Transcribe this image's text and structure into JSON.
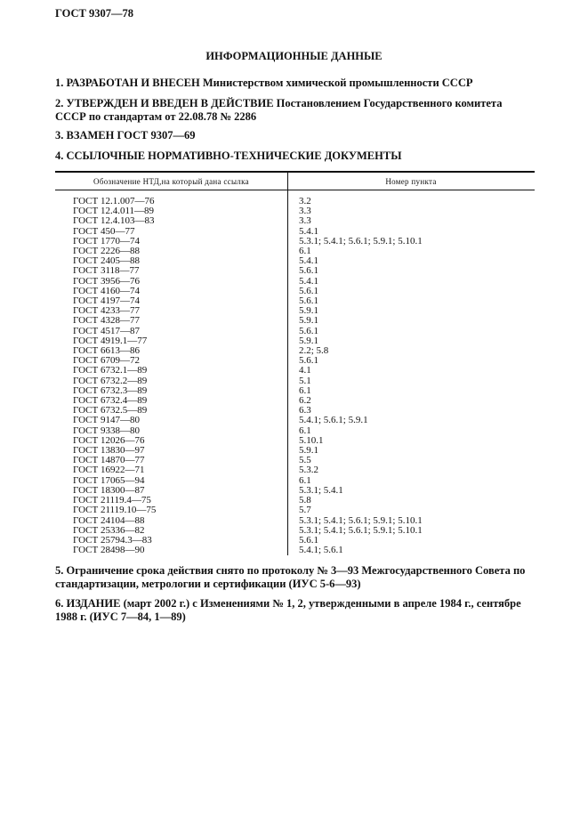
{
  "header": {
    "doc_id": "ГОСТ 9307—78"
  },
  "title": "ИНФОРМАЦИОННЫЕ ДАННЫЕ",
  "sections": [
    "1. РАЗРАБОТАН И ВНЕСЕН Министерством химической промышленности СССР",
    "2. УТВЕРЖДЕН И ВВЕДЕН В ДЕЙСТВИЕ Постановлением Государственного комитета СССР по стандартам от 22.08.78 № 2286",
    "3. ВЗАМЕН ГОСТ 9307—69",
    "4. ССЫЛОЧНЫЕ НОРМАТИВНО-ТЕХНИЧЕСКИЕ ДОКУМЕНТЫ",
    "5. Ограничение срока действия снято по протоколу № 3—93 Межгосударственного Совета по стандартизации, метрологии и сертификации (ИУС 5-6—93)",
    "6. ИЗДАНИЕ (март 2002 г.) с Изменениями № 1, 2, утвержденными в апреле 1984 г., сентябре 1988 г. (ИУС 7—84, 1—89)"
  ],
  "table": {
    "headers": [
      "Обозначение НТД,на который дана ссылка",
      "Номер пункта"
    ],
    "rows": [
      [
        "ГОСТ 12.1.007—76",
        "3.2"
      ],
      [
        "ГОСТ 12.4.011—89",
        "3.3"
      ],
      [
        "ГОСТ 12.4.103—83",
        "3.3"
      ],
      [
        "ГОСТ 450—77",
        "5.4.1"
      ],
      [
        "ГОСТ 1770—74",
        "5.3.1; 5.4.1; 5.6.1; 5.9.1; 5.10.1"
      ],
      [
        "ГОСТ 2226—88",
        "6.1"
      ],
      [
        "ГОСТ 2405—88",
        "5.4.1"
      ],
      [
        "ГОСТ 3118—77",
        "5.6.1"
      ],
      [
        "ГОСТ 3956—76",
        "5.4.1"
      ],
      [
        "ГОСТ 4160—74",
        "5.6.1"
      ],
      [
        "ГОСТ 4197—74",
        "5.6.1"
      ],
      [
        "ГОСТ 4233—77",
        "5.9.1"
      ],
      [
        "ГОСТ 4328—77",
        "5.9.1"
      ],
      [
        "ГОСТ 4517—87",
        "5.6.1"
      ],
      [
        "ГОСТ 4919.1—77",
        "5.9.1"
      ],
      [
        "ГОСТ 6613—86",
        "2.2; 5.8"
      ],
      [
        "ГОСТ 6709—72",
        "5.6.1"
      ],
      [
        "ГОСТ 6732.1—89",
        "4.1"
      ],
      [
        "ГОСТ 6732.2—89",
        "5.1"
      ],
      [
        "ГОСТ 6732.3—89",
        "6.1"
      ],
      [
        "ГОСТ 6732.4—89",
        "6.2"
      ],
      [
        "ГОСТ 6732.5—89",
        "6.3"
      ],
      [
        "ГОСТ 9147—80",
        "5.4.1; 5.6.1; 5.9.1"
      ],
      [
        "ГОСТ 9338—80",
        "6.1"
      ],
      [
        "ГОСТ 12026—76",
        "5.10.1"
      ],
      [
        "ГОСТ 13830—97",
        "5.9.1"
      ],
      [
        "ГОСТ 14870—77",
        "5.5"
      ],
      [
        "ГОСТ 16922—71",
        "5.3.2"
      ],
      [
        "ГОСТ 17065—94",
        "6.1"
      ],
      [
        "ГОСТ 18300—87",
        "5.3.1; 5.4.1"
      ],
      [
        "ГОСТ 21119.4—75",
        "5.8"
      ],
      [
        "ГОСТ 21119.10—75",
        "5.7"
      ],
      [
        "ГОСТ 24104—88",
        "5.3.1; 5.4.1; 5.6.1; 5.9.1; 5.10.1"
      ],
      [
        "ГОСТ 25336—82",
        "5.3.1; 5.4.1; 5.6.1; 5.9.1; 5.10.1"
      ],
      [
        "ГОСТ 25794.3—83",
        "5.6.1"
      ],
      [
        "ГОСТ 28498—90",
        "5.4.1; 5.6.1"
      ]
    ]
  }
}
